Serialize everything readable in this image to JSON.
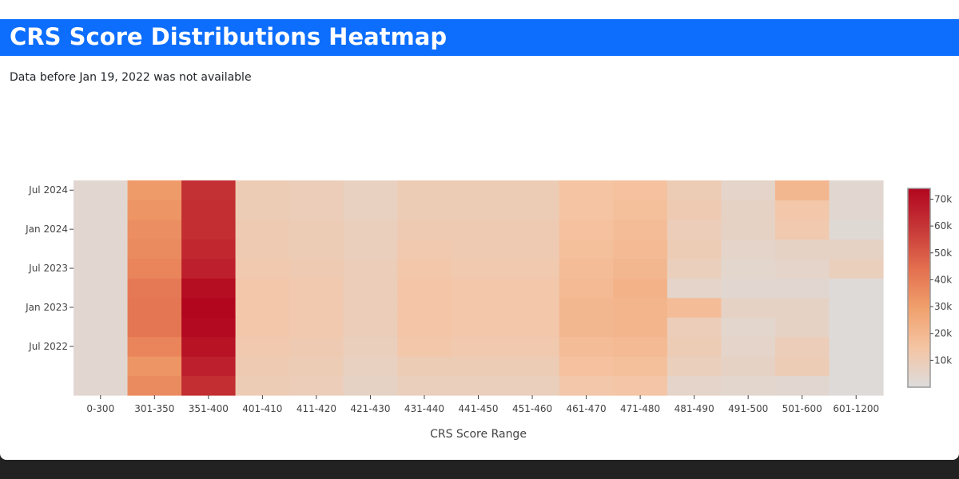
{
  "header": {
    "title": "CRS Score Distributions Heatmap"
  },
  "note": "Data before Jan 19, 2022 was not available",
  "chart_data": {
    "type": "heatmap",
    "title": "",
    "xlabel": "CRS Score Range",
    "ylabel": "",
    "categories": [
      "0-300",
      "301-350",
      "351-400",
      "401-410",
      "411-420",
      "421-430",
      "431-440",
      "441-450",
      "451-460",
      "461-470",
      "471-480",
      "481-490",
      "491-500",
      "501-600",
      "601-1200"
    ],
    "y_dates": [
      "2022-01",
      "2022-04",
      "2022-07",
      "2022-10",
      "2023-01",
      "2023-04",
      "2023-07",
      "2023-10",
      "2024-01",
      "2024-04",
      "2024-07"
    ],
    "y_ticks": [
      {
        "date": "2022-07",
        "label": "Jul 2022"
      },
      {
        "date": "2023-01",
        "label": "Jan 2023"
      },
      {
        "date": "2023-07",
        "label": "Jul 2023"
      },
      {
        "date": "2024-01",
        "label": "Jan 2024"
      },
      {
        "date": "2024-07",
        "label": "Jul 2024"
      }
    ],
    "z": [
      [
        3000,
        36000,
        62000,
        10000,
        9000,
        6000,
        8000,
        8000,
        8000,
        13000,
        14000,
        5000,
        4000,
        3000,
        1000
      ],
      [
        3000,
        33000,
        66000,
        11000,
        10000,
        7000,
        10000,
        10000,
        10000,
        16000,
        17000,
        8000,
        6000,
        10000,
        1000
      ],
      [
        3000,
        38000,
        70000,
        12000,
        11000,
        8000,
        13000,
        12000,
        12000,
        18000,
        19000,
        10000,
        5000,
        9000,
        1000
      ],
      [
        3000,
        42000,
        73000,
        13000,
        12000,
        9000,
        14000,
        13000,
        13000,
        20000,
        21000,
        9000,
        4000,
        6000,
        1000
      ],
      [
        3000,
        42000,
        74000,
        13000,
        12000,
        9000,
        14000,
        13000,
        13000,
        20000,
        21000,
        18000,
        6000,
        6000,
        1000
      ],
      [
        3000,
        41000,
        72000,
        13000,
        12000,
        9000,
        14000,
        13000,
        13000,
        19000,
        22000,
        5000,
        3000,
        3000,
        1000
      ],
      [
        3000,
        38000,
        66000,
        12000,
        11000,
        9000,
        13000,
        12000,
        12000,
        18000,
        20000,
        8000,
        4000,
        5000,
        8000
      ],
      [
        3000,
        36000,
        64000,
        11000,
        10000,
        8000,
        12000,
        11000,
        11000,
        17000,
        19000,
        10000,
        5000,
        6000,
        6000
      ],
      [
        3000,
        35000,
        62000,
        11000,
        10000,
        8000,
        11000,
        11000,
        11000,
        16000,
        18000,
        9000,
        6000,
        12000,
        2000
      ],
      [
        3000,
        33000,
        62000,
        10000,
        9000,
        7000,
        10000,
        10000,
        10000,
        15000,
        17000,
        11000,
        6000,
        13000,
        3000
      ],
      [
        3000,
        31000,
        61000,
        10000,
        9000,
        7000,
        10000,
        10000,
        10000,
        15000,
        16000,
        10000,
        5000,
        20000,
        3000
      ]
    ],
    "zmin": 0,
    "zmax": 74000,
    "colorbar_ticks": [
      {
        "value": 10000,
        "label": "10k"
      },
      {
        "value": 20000,
        "label": "20k"
      },
      {
        "value": 30000,
        "label": "30k"
      },
      {
        "value": 40000,
        "label": "40k"
      },
      {
        "value": 50000,
        "label": "50k"
      },
      {
        "value": 60000,
        "label": "60k"
      },
      {
        "value": 70000,
        "label": "70k"
      }
    ],
    "colorscale": [
      "#dcdcdc",
      "#f5c4a3",
      "#f0a06c",
      "#e36e4e",
      "#c63737",
      "#b2061f"
    ],
    "legend": "colorbar-right"
  }
}
